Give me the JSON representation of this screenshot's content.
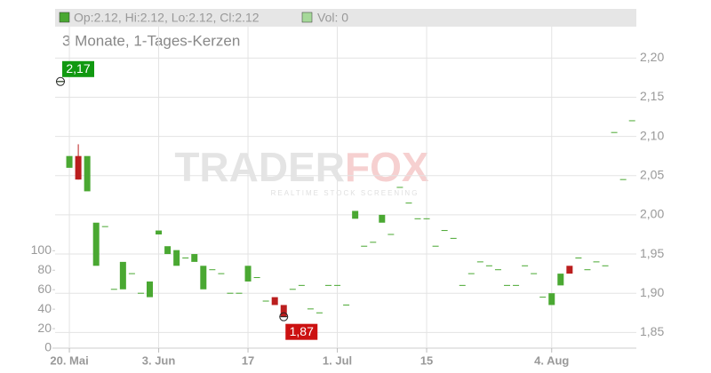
{
  "chart_data": {
    "type": "candlestick",
    "header": {
      "ohlc": "Op:2.12, Hi:2.12, Lo:2.12, Cl:2.12",
      "volume": "Vol: 0"
    },
    "subtitle": "3 Monate, 1-Tages-Kerzen",
    "watermark": {
      "brand_left": "TRADER",
      "brand_right": "FOX",
      "tagline": "REALTIME STOCK SCREENING"
    },
    "categories": [
      null,
      "20. Mai",
      null,
      null,
      null,
      null,
      null,
      null,
      null,
      null,
      null,
      "3. Jun",
      null,
      null,
      null,
      null,
      null,
      null,
      null,
      null,
      null,
      "17",
      null,
      null,
      null,
      null,
      null,
      null,
      null,
      null,
      null,
      "1. Jul",
      null,
      null,
      null,
      null,
      null,
      null,
      null,
      null,
      null,
      "15",
      null,
      null,
      null,
      null,
      null,
      null,
      null,
      null,
      null,
      null,
      null,
      null,
      null,
      "4. Aug",
      null,
      null,
      null,
      null,
      null,
      null,
      null,
      null,
      null
    ],
    "open": [
      2.17,
      2.06,
      2.075,
      2.03,
      1.935,
      1.985,
      1.905,
      1.905,
      1.925,
      1.9,
      1.895,
      1.975,
      1.95,
      1.935,
      1.945,
      1.94,
      1.905,
      1.93,
      1.925,
      1.9,
      1.9,
      1.915,
      1.92,
      1.89,
      1.895,
      1.885,
      1.905,
      1.91,
      1.88,
      1.875,
      1.91,
      1.91,
      1.885,
      1.995,
      1.96,
      1.965,
      1.99,
      1.975,
      2.035,
      2.015,
      1.995,
      1.995,
      1.96,
      1.98,
      1.97,
      1.91,
      1.925,
      1.94,
      1.935,
      1.93,
      1.91,
      1.91,
      1.935,
      1.925,
      1.895,
      1.885,
      1.91,
      1.935,
      1.945,
      1.93,
      1.94,
      1.935,
      2.105,
      2.045,
      2.12
    ],
    "high": [
      2.17,
      2.075,
      2.09,
      2.075,
      1.99,
      1.985,
      1.905,
      1.94,
      1.925,
      1.9,
      1.915,
      1.98,
      1.96,
      1.955,
      1.945,
      1.95,
      1.935,
      1.93,
      1.925,
      1.9,
      1.9,
      1.935,
      1.92,
      1.89,
      1.895,
      1.885,
      1.905,
      1.91,
      1.88,
      1.875,
      1.91,
      1.91,
      1.885,
      2.005,
      1.96,
      1.965,
      2.0,
      1.975,
      2.035,
      2.015,
      1.995,
      1.995,
      1.96,
      1.98,
      1.97,
      1.91,
      1.925,
      1.94,
      1.935,
      1.93,
      1.91,
      1.91,
      1.935,
      1.925,
      1.895,
      1.9,
      1.925,
      1.935,
      1.945,
      1.93,
      1.94,
      1.935,
      2.105,
      2.045,
      2.12
    ],
    "low": [
      2.17,
      2.06,
      2.045,
      2.03,
      1.935,
      1.985,
      1.905,
      1.905,
      1.925,
      1.9,
      1.895,
      1.975,
      1.95,
      1.935,
      1.945,
      1.94,
      1.905,
      1.93,
      1.925,
      1.9,
      1.9,
      1.915,
      1.92,
      1.89,
      1.885,
      1.87,
      1.905,
      1.91,
      1.88,
      1.875,
      1.91,
      1.91,
      1.885,
      1.995,
      1.96,
      1.965,
      1.99,
      1.975,
      2.035,
      2.015,
      1.995,
      1.995,
      1.96,
      1.98,
      1.97,
      1.91,
      1.925,
      1.94,
      1.935,
      1.93,
      1.91,
      1.91,
      1.935,
      1.925,
      1.895,
      1.885,
      1.91,
      1.925,
      1.945,
      1.93,
      1.94,
      1.935,
      2.105,
      2.045,
      2.12
    ],
    "close": [
      2.17,
      2.075,
      2.045,
      2.075,
      1.99,
      1.985,
      1.905,
      1.94,
      1.925,
      1.9,
      1.915,
      1.98,
      1.96,
      1.955,
      1.945,
      1.95,
      1.935,
      1.93,
      1.925,
      1.9,
      1.9,
      1.935,
      1.92,
      1.89,
      1.885,
      1.87,
      1.905,
      1.91,
      1.88,
      1.875,
      1.91,
      1.91,
      1.885,
      2.005,
      1.96,
      1.965,
      2.0,
      1.975,
      2.035,
      2.015,
      1.995,
      1.995,
      1.96,
      1.98,
      1.97,
      1.91,
      1.925,
      1.94,
      1.935,
      1.93,
      1.91,
      1.91,
      1.935,
      1.925,
      1.895,
      1.9,
      1.925,
      1.925,
      1.945,
      1.93,
      1.94,
      1.935,
      2.105,
      2.045,
      2.12
    ],
    "up_color": "#4aa832",
    "down_color": "#bb1e1e",
    "high_marker": {
      "index": 0,
      "value": 2.17,
      "label": "2,17"
    },
    "low_marker": {
      "index": 25,
      "value": 1.87,
      "label": "1,87"
    },
    "ylim": [
      1.83,
      2.24
    ],
    "yticks": [
      {
        "value": 1.85,
        "label": "1,85"
      },
      {
        "value": 1.9,
        "label": "1,90"
      },
      {
        "value": 1.95,
        "label": "1,95"
      },
      {
        "value": 2.0,
        "label": "2,00"
      },
      {
        "value": 2.05,
        "label": "2,05"
      },
      {
        "value": 2.1,
        "label": "2,10"
      },
      {
        "value": 2.15,
        "label": "2,15"
      },
      {
        "value": 2.2,
        "label": "2,20"
      }
    ],
    "y2lim": [
      0,
      330
    ],
    "y2ticks": [
      0,
      20,
      40,
      60,
      80,
      100
    ],
    "grid": true
  }
}
